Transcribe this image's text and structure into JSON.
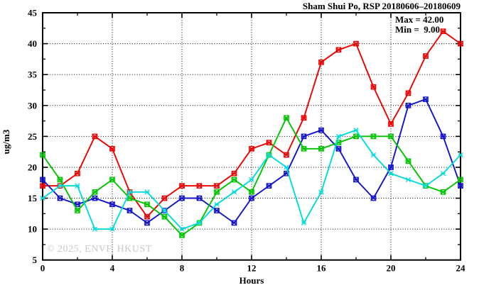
{
  "header": {
    "title": "Sham Shui Po, RSP 20180606–20180609"
  },
  "annotation": {
    "max_label": "Max = 42.00",
    "min_label": "Min =  9.00"
  },
  "watermark": "© 2025, ENVF, HKUST",
  "chart_data": {
    "type": "line",
    "title": "Sham Shui Po, RSP 20180606–20180609",
    "xlabel": "Hours",
    "ylabel": "ug/m3",
    "xlim": [
      0,
      24
    ],
    "ylim": [
      5,
      45
    ],
    "x_ticks": [
      0,
      4,
      8,
      12,
      16,
      20,
      24
    ],
    "y_ticks": [
      5,
      10,
      15,
      20,
      25,
      30,
      35,
      40,
      45
    ],
    "x_minor_step": 2,
    "y_minor_step": 2.5,
    "grid": true,
    "legend": "none",
    "max_value": 42.0,
    "min_value": 9.0,
    "x": [
      0,
      1,
      2,
      3,
      4,
      5,
      6,
      7,
      8,
      9,
      10,
      11,
      12,
      13,
      14,
      15,
      16,
      17,
      18,
      19,
      20,
      21,
      22,
      23,
      24
    ],
    "series": [
      {
        "name": "series-red",
        "color": "#ee0000",
        "marker": "boxx",
        "values": [
          17,
          17,
          19,
          25,
          23,
          16,
          12,
          15,
          17,
          17,
          17,
          19,
          23,
          24,
          22,
          28,
          37,
          39,
          40,
          33,
          27,
          32,
          38,
          42,
          40
        ]
      },
      {
        "name": "series-blue",
        "color": "#1212cc",
        "marker": "boxx",
        "values": [
          18,
          15,
          14,
          15,
          14,
          13,
          11,
          13,
          15,
          15,
          13,
          11,
          15,
          17,
          19,
          25,
          26,
          23,
          18,
          15,
          20,
          30,
          31,
          25,
          17
        ]
      },
      {
        "name": "series-green",
        "color": "#00c400",
        "marker": "boxx",
        "values": [
          22,
          18,
          13,
          16,
          18,
          15,
          14,
          12,
          9,
          11,
          16,
          18,
          16,
          22,
          28,
          23,
          23,
          24,
          25,
          25,
          25,
          21,
          17,
          16,
          18
        ]
      },
      {
        "name": "series-cyan",
        "color": "#00dcdc",
        "marker": "x",
        "values": [
          15,
          17,
          17,
          10,
          10,
          16,
          16,
          13,
          10,
          11,
          14,
          16,
          18,
          22,
          20,
          11,
          16,
          25,
          26,
          22,
          19,
          18,
          17,
          19,
          22
        ]
      }
    ]
  }
}
